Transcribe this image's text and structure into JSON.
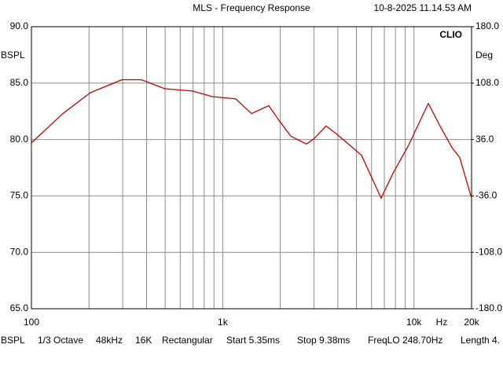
{
  "chart_data": {
    "type": "line",
    "title": "MLS - Frequency Response",
    "timestamp": "10-8-2025 11.14.53 AM",
    "brand": "CLIO",
    "y_label": "BSPL",
    "y2_label": "Deg",
    "x_label": "Hz",
    "log_x": true,
    "grid": true,
    "xlim": [
      100,
      20000
    ],
    "xticks": [
      100,
      {
        "value": 1000,
        "label": "1k"
      },
      {
        "value": 10000,
        "label": "10k"
      },
      {
        "value": 20000,
        "label": "20k"
      }
    ],
    "xminorticks": [
      200,
      300,
      400,
      500,
      600,
      700,
      800,
      900,
      2000,
      3000,
      4000,
      5000,
      6000,
      7000,
      8000,
      9000
    ],
    "ylim": [
      65,
      90
    ],
    "yticks": [
      {
        "value": 90,
        "label": "90.0"
      },
      {
        "value": 85,
        "label": "85.0"
      },
      {
        "value": 80,
        "label": "80.0"
      },
      {
        "value": 75,
        "label": "75.0"
      },
      {
        "value": 70,
        "label": "70.0"
      },
      {
        "value": 65,
        "label": "65.0"
      }
    ],
    "y2lim": [
      -180,
      180
    ],
    "y2ticks": [
      {
        "value": 180,
        "label": "180.0"
      },
      {
        "value": 108,
        "label": "108.0"
      },
      {
        "value": 36,
        "label": "36.0"
      },
      {
        "value": -36,
        "label": "-36.0"
      },
      {
        "value": -108,
        "label": "-108.0"
      },
      {
        "value": -180,
        "label": "-180.0"
      }
    ],
    "x": [
      100,
      146,
      203,
      297,
      376,
      499,
      695,
      881,
      1170,
      1414,
      1741,
      1968,
      2268,
      2741,
      3013,
      3473,
      3926,
      4613,
      5318,
      6733,
      7762,
      9376,
      11880,
      13680,
      15780,
      17340,
      20000
    ],
    "series": [
      {
        "name": "BSPL",
        "color": "#cc0000",
        "values": [
          79.7,
          82.3,
          84.15,
          85.3,
          85.3,
          84.5,
          84.3,
          83.8,
          83.6,
          82.3,
          83.0,
          81.7,
          80.3,
          79.6,
          80.1,
          81.2,
          80.5,
          79.5,
          78.6,
          74.8,
          77.0,
          79.5,
          83.2,
          81.2,
          79.3,
          78.4,
          74.8
        ]
      }
    ],
    "footer": [
      "BSPL",
      "1/3 Octave",
      "48kHz",
      "16K",
      "Rectangular",
      "Start 5.35ms",
      "Stop 9.38ms",
      "FreqLO 248.70Hz",
      "Length 4."
    ]
  }
}
